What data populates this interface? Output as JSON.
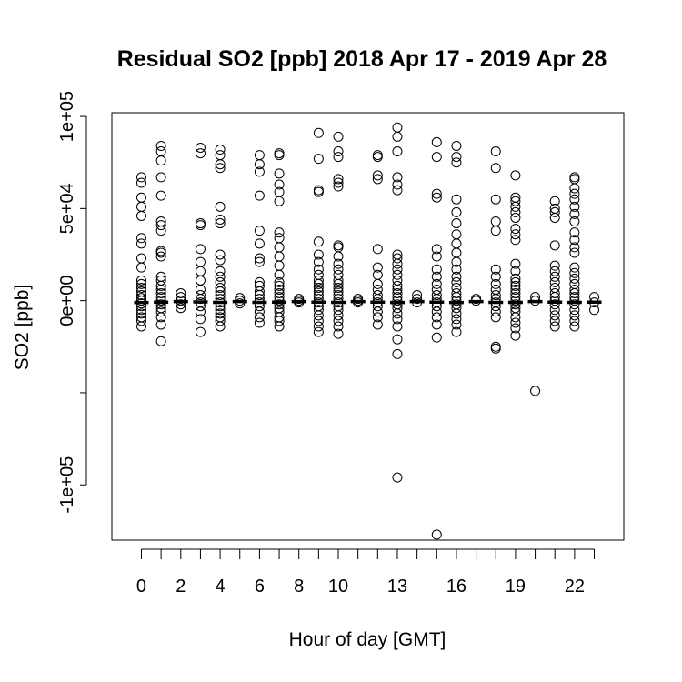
{
  "chart_data": {
    "type": "scatter",
    "title": "Residual SO2 [ppb] 2018 Apr 17 - 2019 Apr 28",
    "xlabel": "Hour of day [GMT]",
    "ylabel": "SO2 [ppb]",
    "xlim": [
      -1.5,
      24.5
    ],
    "ylim": [
      -130000,
      102000
    ],
    "x_ticks": [
      0,
      1,
      2,
      3,
      4,
      5,
      6,
      7,
      8,
      9,
      10,
      11,
      12,
      13,
      14,
      15,
      16,
      17,
      18,
      19,
      20,
      21,
      22,
      23
    ],
    "x_tick_labels": [
      {
        "x": 0,
        "label": "0"
      },
      {
        "x": 2,
        "label": "2"
      },
      {
        "x": 4,
        "label": "4"
      },
      {
        "x": 6,
        "label": "6"
      },
      {
        "x": 8,
        "label": "8"
      },
      {
        "x": 10,
        "label": "10"
      },
      {
        "x": 13,
        "label": "13"
      },
      {
        "x": 16,
        "label": "16"
      },
      {
        "x": 19,
        "label": "19"
      },
      {
        "x": 22,
        "label": "22"
      }
    ],
    "y_ticks": [
      {
        "value": 100000,
        "label": "1e+05"
      },
      {
        "value": 50000,
        "label": "5e+04"
      },
      {
        "value": 0,
        "label": "0e+00"
      },
      {
        "value": -50000,
        "label": ""
      },
      {
        "value": -100000,
        "label": "-1e+05"
      }
    ],
    "grid": false,
    "median_line": "dashed black segments at each hour near 0",
    "series": [
      {
        "x": 0,
        "y": [
          67000,
          64000,
          56000,
          51000,
          46000,
          34000,
          31000,
          23000,
          18000,
          11000,
          9000,
          7000,
          5000,
          3000,
          1500,
          0,
          -1500,
          -3000,
          -5000,
          -7000,
          -9000,
          -11000,
          -14000
        ]
      },
      {
        "x": 1,
        "y": [
          84000,
          81000,
          76000,
          67000,
          57000,
          43000,
          41000,
          38000,
          27000,
          26000,
          24000,
          13000,
          11000,
          8000,
          6000,
          4000,
          2000,
          0,
          -2000,
          -4000,
          -6000,
          -9000,
          -13000,
          -22000
        ]
      },
      {
        "x": 2,
        "y": [
          4000,
          2000,
          0,
          -2000,
          -4000
        ]
      },
      {
        "x": 3,
        "y": [
          83000,
          80000,
          42000,
          41000,
          28000,
          21000,
          16000,
          11000,
          6000,
          3000,
          1000,
          -1000,
          -3000,
          -6000,
          -10000,
          -17000
        ]
      },
      {
        "x": 4,
        "y": [
          82000,
          79000,
          74000,
          72000,
          51000,
          44000,
          42000,
          25000,
          22000,
          16000,
          13000,
          10000,
          7000,
          5000,
          3000,
          1000,
          -1000,
          -3000,
          -5000,
          -7000,
          -9000,
          -11000,
          -14000
        ]
      },
      {
        "x": 5,
        "y": [
          1500,
          0,
          -1500
        ]
      },
      {
        "x": 6,
        "y": [
          79000,
          74000,
          70000,
          57000,
          38000,
          31000,
          23000,
          21000,
          10000,
          8000,
          5000,
          3000,
          1000,
          -1000,
          -3000,
          -6000,
          -9000,
          -12000
        ]
      },
      {
        "x": 7,
        "y": [
          80000,
          79000,
          69000,
          63000,
          59000,
          54000,
          37000,
          34000,
          29000,
          24000,
          19000,
          14000,
          10000,
          8000,
          6000,
          4000,
          2000,
          0,
          -2000,
          -4000,
          -6000,
          -9000,
          -11000,
          -14000
        ]
      },
      {
        "x": 8,
        "y": [
          1000,
          0,
          -1000
        ]
      },
      {
        "x": 9,
        "y": [
          91000,
          77000,
          60000,
          59000,
          32000,
          25000,
          21000,
          17000,
          14000,
          11000,
          9000,
          7000,
          5000,
          3000,
          1000,
          -1000,
          -3000,
          -5000,
          -8000,
          -11000,
          -14000,
          -17000
        ]
      },
      {
        "x": 10,
        "y": [
          89000,
          81000,
          78000,
          66000,
          64000,
          62000,
          30000,
          29000,
          24000,
          20000,
          17000,
          14000,
          11000,
          9000,
          7000,
          5000,
          3000,
          1000,
          -1000,
          -3000,
          -5000,
          -8000,
          -11000,
          -14000,
          -18000
        ]
      },
      {
        "x": 11,
        "y": [
          1000,
          0,
          -1000
        ]
      },
      {
        "x": 12,
        "y": [
          79000,
          78000,
          68000,
          66000,
          28000,
          18000,
          14000,
          9000,
          6000,
          3000,
          1000,
          -1000,
          -3000,
          -6000,
          -9000,
          -13000
        ]
      },
      {
        "x": 13,
        "y": [
          94000,
          89000,
          81000,
          67000,
          63000,
          60000,
          25000,
          23000,
          20000,
          17000,
          14000,
          11000,
          8000,
          6000,
          4000,
          2000,
          0,
          -2000,
          -4000,
          -7000,
          -10000,
          -14000,
          -21000,
          -29000,
          -96000
        ]
      },
      {
        "x": 14,
        "y": [
          3000,
          1000,
          -1000
        ]
      },
      {
        "x": 15,
        "y": [
          86000,
          78000,
          58000,
          56000,
          28000,
          24000,
          17000,
          13000,
          9000,
          6000,
          3000,
          1000,
          -1000,
          -3000,
          -6000,
          -9000,
          -13000,
          -20000,
          -127000
        ]
      },
      {
        "x": 16,
        "y": [
          84000,
          78000,
          75000,
          55000,
          48000,
          42000,
          36000,
          31000,
          26000,
          21000,
          17000,
          13000,
          10000,
          7000,
          4000,
          2000,
          0,
          -2000,
          -4000,
          -7000,
          -10000,
          -13000,
          -17000
        ]
      },
      {
        "x": 17,
        "y": [
          1000,
          0
        ]
      },
      {
        "x": 18,
        "y": [
          81000,
          72000,
          55000,
          43000,
          38000,
          17000,
          13000,
          9000,
          6000,
          3000,
          1000,
          -1000,
          -3000,
          -6000,
          -9000,
          -25000,
          -26000
        ]
      },
      {
        "x": 19,
        "y": [
          68000,
          56000,
          54000,
          51000,
          48000,
          45000,
          39000,
          36000,
          33000,
          20000,
          16000,
          12000,
          10000,
          8000,
          6000,
          4000,
          2000,
          0,
          -2000,
          -4000,
          -6000,
          -9000,
          -12000,
          -15000,
          -19000
        ]
      },
      {
        "x": 20,
        "y": [
          2000,
          0,
          -49000
        ]
      },
      {
        "x": 21,
        "y": [
          54000,
          50000,
          48000,
          45000,
          30000,
          19000,
          16000,
          13000,
          10000,
          7000,
          4000,
          2000,
          0,
          -2000,
          -5000,
          -8000,
          -11000,
          -14000
        ]
      },
      {
        "x": 22,
        "y": [
          67000,
          66000,
          61000,
          58000,
          55000,
          51000,
          47000,
          43000,
          37000,
          33000,
          29000,
          26000,
          18000,
          15000,
          12000,
          9000,
          6000,
          4000,
          2000,
          0,
          -2000,
          -5000,
          -8000,
          -11000,
          -14000
        ]
      },
      {
        "x": 23,
        "y": [
          2000,
          -1000,
          -5000
        ]
      }
    ],
    "medians": [
      {
        "x": 0,
        "y": -1000
      },
      {
        "x": 1,
        "y": -800
      },
      {
        "x": 2,
        "y": -500
      },
      {
        "x": 3,
        "y": -700
      },
      {
        "x": 4,
        "y": -900
      },
      {
        "x": 5,
        "y": -500
      },
      {
        "x": 6,
        "y": -900
      },
      {
        "x": 7,
        "y": -800
      },
      {
        "x": 8,
        "y": -500
      },
      {
        "x": 9,
        "y": -800
      },
      {
        "x": 10,
        "y": -900
      },
      {
        "x": 11,
        "y": -500
      },
      {
        "x": 12,
        "y": -800
      },
      {
        "x": 13,
        "y": -1000
      },
      {
        "x": 14,
        "y": -500
      },
      {
        "x": 15,
        "y": -800
      },
      {
        "x": 16,
        "y": -1000
      },
      {
        "x": 17,
        "y": -500
      },
      {
        "x": 18,
        "y": -900
      },
      {
        "x": 19,
        "y": -900
      },
      {
        "x": 20,
        "y": -500
      },
      {
        "x": 21,
        "y": -800
      },
      {
        "x": 22,
        "y": -900
      },
      {
        "x": 23,
        "y": -800
      }
    ]
  }
}
